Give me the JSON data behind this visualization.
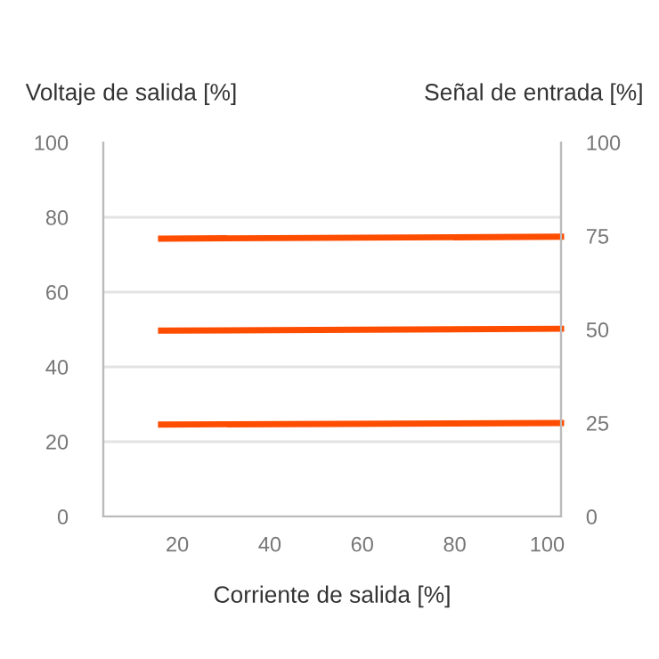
{
  "chart_data": {
    "type": "line",
    "xlabel": "Corriente de salida [%]",
    "ylabel": "Voltaje de salida [%]",
    "y2label": "Señal de entrada [%]",
    "xlim": [
      4,
      103
    ],
    "xticks": [
      20,
      40,
      60,
      80,
      100
    ],
    "ylim": [
      0,
      100
    ],
    "yticks": [
      0,
      20,
      40,
      60,
      80,
      100
    ],
    "y2lim": [
      0,
      100
    ],
    "y2ticks": [
      0,
      25,
      50,
      75,
      100
    ],
    "grid": "y",
    "marker": "none",
    "line_style": "solid",
    "legend": false,
    "x": [
      16.5,
      103
    ],
    "series": [
      {
        "color": "#ff4d00",
        "axis": "y2",
        "values": [
          74.3,
          74.8
        ]
      },
      {
        "color": "#ff4d00",
        "axis": "y2",
        "values": [
          49.7,
          50.2
        ]
      },
      {
        "color": "#ff4d00",
        "axis": "y2",
        "values": [
          24.6,
          25.0
        ]
      }
    ]
  }
}
